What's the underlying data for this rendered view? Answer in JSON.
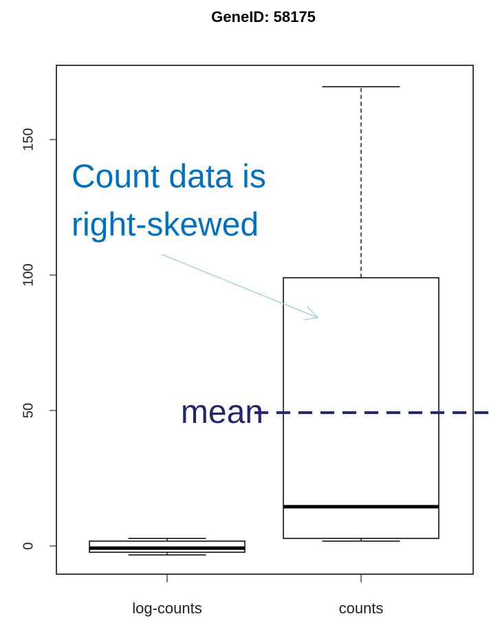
{
  "chart_data": {
    "type": "box",
    "title": "GeneID: 58175",
    "categories": [
      "log-counts",
      "counts"
    ],
    "boxes": [
      {
        "min": -3.3,
        "q1": -2.3,
        "median": -0.8,
        "q3": 1.8,
        "max": 2.8
      },
      {
        "min": 1.8,
        "q1": 2.8,
        "median": 14.5,
        "q3": 99,
        "max": 169.5
      }
    ],
    "ylim": [
      -10.4,
      177.4
    ],
    "yticks": [
      0,
      50,
      100,
      150
    ],
    "mean_line": {
      "value": 49.2,
      "label": "mean",
      "color": "#25276b"
    },
    "annotation": {
      "lines": [
        "Count data is",
        "right-skewed"
      ],
      "color": "#0070c0"
    }
  }
}
